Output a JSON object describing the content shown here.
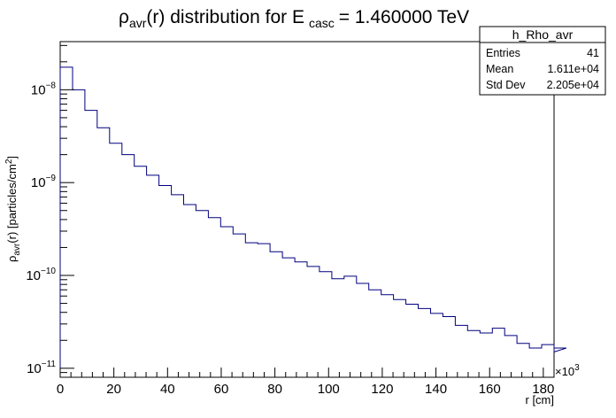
{
  "chart_data": {
    "type": "histogram",
    "title": {
      "rho": "ρ",
      "rho_sub": "avr",
      "middle": "(r) distribution for E",
      "e_sub": "casc",
      "tail": "= 1.460000 TeV"
    },
    "xlabel": "r [cm]",
    "ylabel": {
      "rho": "ρ",
      "rho_sub": "avr",
      "middle": "(r) [particles/cm",
      "sup": "2",
      "end": "]"
    },
    "x_multiplier": {
      "base": "×10",
      "exp": "3"
    },
    "x_range": [
      0,
      184
    ],
    "y_range": [
      8e-12,
      3.3e-08
    ],
    "y_scale": "log",
    "x_ticks": [
      0,
      20,
      40,
      60,
      80,
      100,
      120,
      140,
      160,
      180
    ],
    "x_tick_labels": [
      "0",
      "20",
      "40",
      "60",
      "80",
      "100",
      "120",
      "140",
      "160",
      "180"
    ],
    "y_ticks": [
      {
        "value": 1e-08,
        "mantissa": "10",
        "exp": "−8"
      },
      {
        "value": 1e-09,
        "mantissa": "10",
        "exp": "−9"
      },
      {
        "value": 1e-10,
        "mantissa": "10",
        "exp": "−10"
      },
      {
        "value": 1e-11,
        "mantissa": "10",
        "exp": "−11"
      }
    ],
    "bin_width": 4.6,
    "series": [
      {
        "line_color": "#00007f",
        "values": [
          1.75e-08,
          1e-08,
          6e-09,
          3.9e-09,
          2.65e-09,
          2e-09,
          1.5e-09,
          1.2e-09,
          9.3e-10,
          7.4e-10,
          5.8e-10,
          5e-10,
          4.2e-10,
          3.35e-10,
          2.8e-10,
          2.25e-10,
          2.2e-10,
          1.8e-10,
          1.55e-10,
          1.4e-10,
          1.25e-10,
          1.1e-10,
          9.2e-11,
          9.8e-11,
          8.2e-11,
          7e-11,
          6.2e-11,
          5.5e-11,
          4.9e-11,
          4.4e-11,
          3.9e-11,
          3.6e-11,
          2.9e-11,
          2.55e-11,
          2.4e-11,
          2.7e-11,
          2.25e-11,
          1.85e-11,
          1.65e-11,
          1.8e-11,
          1.5e-11,
          1.65e-11
        ]
      }
    ],
    "stats_box": {
      "name": "h_Rho_avr",
      "rows": [
        {
          "label": "Entries",
          "value": "41"
        },
        {
          "label": "Mean",
          "value": "1.611e+04"
        },
        {
          "label": "Std Dev",
          "value": "2.205e+04"
        }
      ]
    },
    "grid": false,
    "legend": "none"
  }
}
